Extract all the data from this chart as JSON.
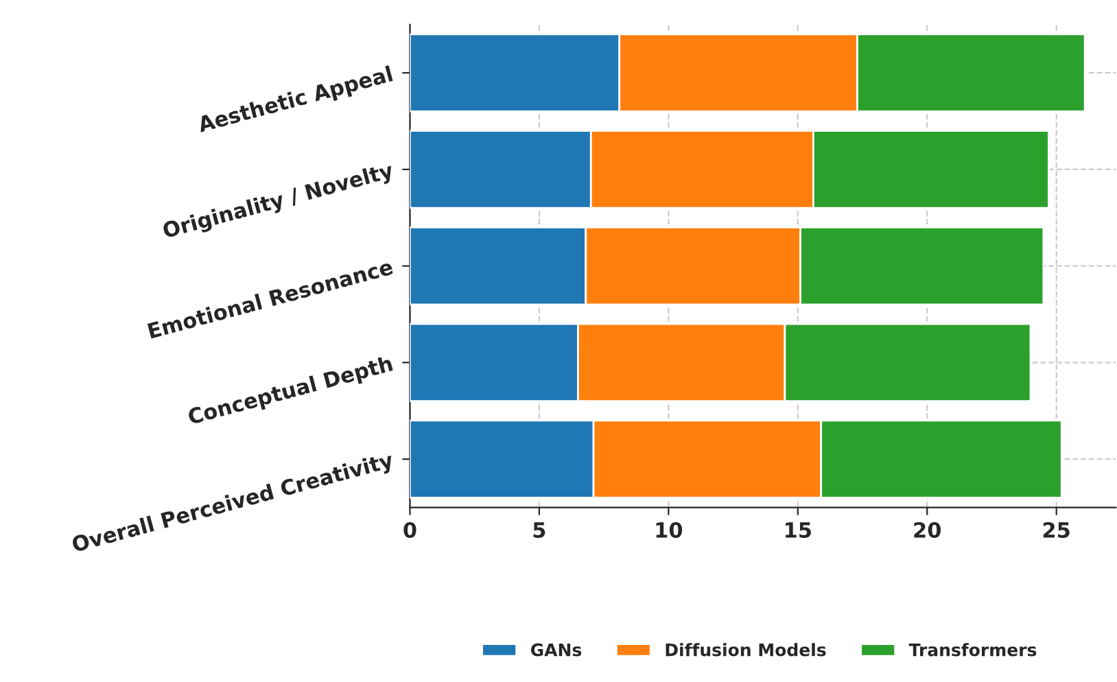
{
  "chart_data": {
    "type": "bar",
    "orientation": "horizontal",
    "stacked": true,
    "categories": [
      "Aesthetic Appeal",
      "Originality / Novelty",
      "Emotional Resonance",
      "Conceptual Depth",
      "Overall Perceived Creativity"
    ],
    "series": [
      {
        "name": "GANs",
        "color": "#1f77b4",
        "values": [
          8.1,
          7.0,
          6.8,
          6.5,
          7.1
        ]
      },
      {
        "name": "Diffusion Models",
        "color": "#ff7f0e",
        "values": [
          9.2,
          8.6,
          8.3,
          8.0,
          8.8
        ]
      },
      {
        "name": "Transformers",
        "color": "#2ca02c",
        "values": [
          8.8,
          9.1,
          9.4,
          9.5,
          9.3
        ]
      }
    ],
    "xlim": [
      0,
      27.3
    ],
    "xticks": [
      0,
      5,
      10,
      15,
      20,
      25
    ],
    "grid": true,
    "legend": "bottom"
  }
}
